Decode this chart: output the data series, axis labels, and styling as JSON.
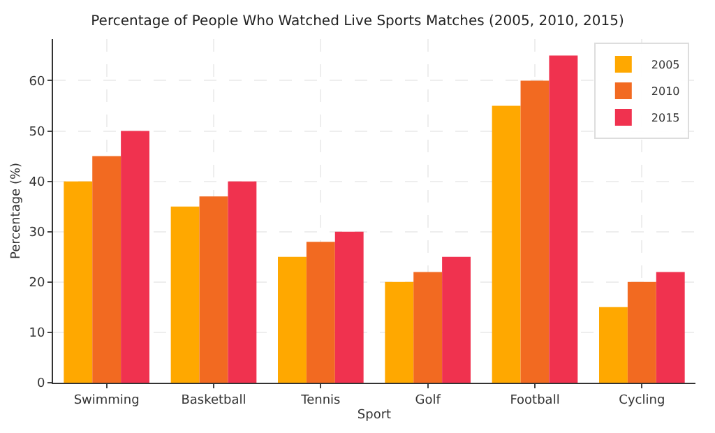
{
  "chart_data": {
    "type": "bar",
    "title": "Percentage of People Who Watched Live Sports Matches (2005, 2010, 2015)",
    "xlabel": "Sport",
    "ylabel": "Percentage (%)",
    "categories": [
      "Swimming",
      "Basketball",
      "Tennis",
      "Golf",
      "Football",
      "Cycling"
    ],
    "series": [
      {
        "name": "2005",
        "color": "#ffa800",
        "values": [
          40,
          35,
          25,
          20,
          55,
          15
        ]
      },
      {
        "name": "2010",
        "color": "#f26a21",
        "values": [
          45,
          37,
          28,
          22,
          60,
          20
        ]
      },
      {
        "name": "2015",
        "color": "#f0324f",
        "values": [
          50,
          40,
          30,
          25,
          65,
          22
        ]
      }
    ],
    "ylim": [
      0,
      68.25
    ],
    "yticks": [
      0,
      10,
      20,
      30,
      40,
      50,
      60
    ],
    "grid": true,
    "legend": "top right"
  }
}
